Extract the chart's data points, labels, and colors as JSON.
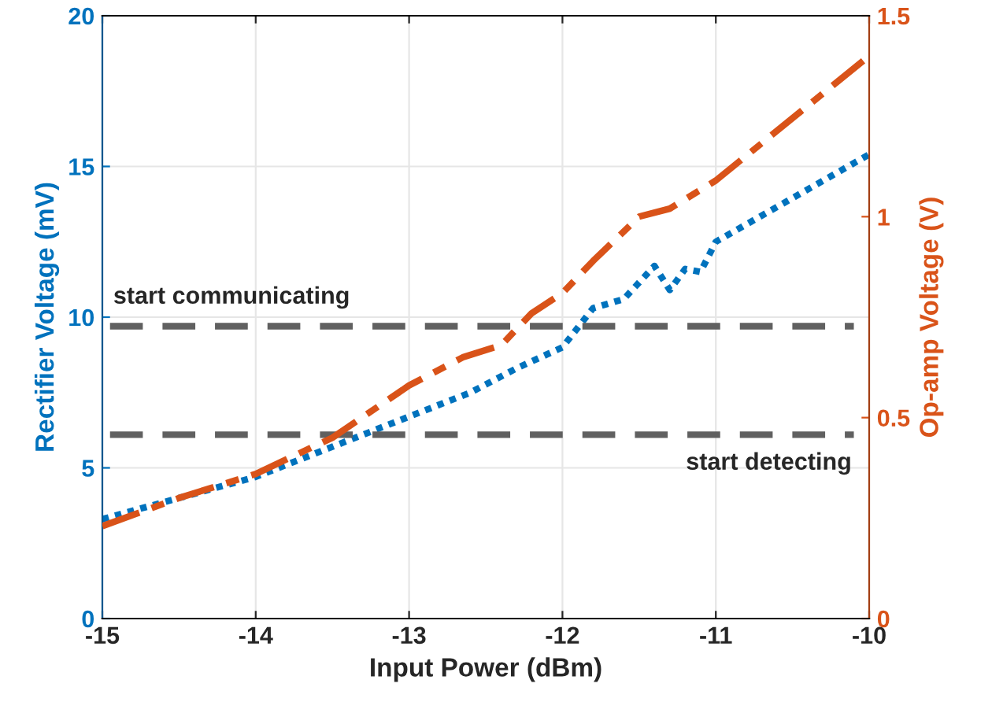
{
  "chart_data": {
    "type": "line",
    "xlabel": "Input Power (dBm)",
    "ylabel": "Rectifier Voltage (mV)",
    "y2label": "Op-amp Voltage (V)",
    "xlim": [
      -15,
      -10
    ],
    "xticks": [
      {
        "value": -15,
        "label": "-15"
      },
      {
        "value": -14,
        "label": "-14"
      },
      {
        "value": -13,
        "label": "-13"
      },
      {
        "value": -12,
        "label": "-12"
      },
      {
        "value": -11,
        "label": "-11"
      },
      {
        "value": -10,
        "label": "-10"
      }
    ],
    "ylim": [
      0,
      20
    ],
    "yticks": [
      0,
      5,
      10,
      15,
      20
    ],
    "y2lim": [
      0,
      1.5
    ],
    "y2ticks": [
      0,
      0.5,
      1,
      1.5
    ],
    "grid": true,
    "series": [
      {
        "color": "#0072bd",
        "line_style": "dotted",
        "axis": "y",
        "x": [
          -15,
          -14.5,
          -14,
          -13.5,
          -13,
          -12.6,
          -12.3,
          -12,
          -11.8,
          -11.6,
          -11.4,
          -11.3,
          -11.2,
          -11.1,
          -11,
          -10
        ],
        "values": [
          3.3,
          4.0,
          4.7,
          5.7,
          6.7,
          7.5,
          8.3,
          9.0,
          10.3,
          10.6,
          11.7,
          10.9,
          11.6,
          11.5,
          12.5,
          15.4
        ]
      },
      {
        "color": "#d95319",
        "line_style": "dashdot",
        "axis": "y2",
        "x": [
          -15,
          -14.5,
          -14,
          -13.5,
          -13,
          -12.65,
          -12.4,
          -12.2,
          -12,
          -11.8,
          -11.5,
          -11.3,
          -11,
          -10
        ],
        "values": [
          0.23,
          0.3,
          0.36,
          0.45,
          0.58,
          0.65,
          0.68,
          0.76,
          0.81,
          0.89,
          1.0,
          1.02,
          1.09,
          1.4
        ]
      }
    ],
    "ref_lines": [
      {
        "axis": "y",
        "value": 9.7,
        "label": "start communicating",
        "color": "#606060",
        "line_style": "dashed"
      },
      {
        "axis": "y",
        "value": 6.1,
        "label": "start detecting",
        "color": "#606060",
        "line_style": "dashed"
      }
    ]
  }
}
